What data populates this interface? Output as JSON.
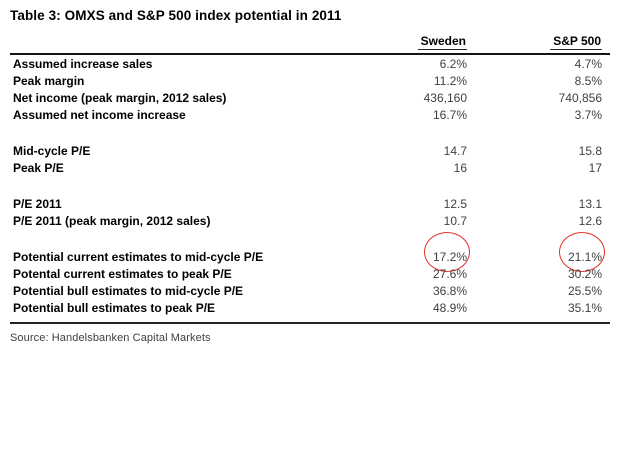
{
  "title": "Table 3: OMXS and S&P 500 index potential in 2011",
  "columns": [
    "Sweden",
    "S&P 500"
  ],
  "groups": [
    {
      "rows": [
        {
          "label": "Assumed increase sales",
          "sweden": "6.2%",
          "sp500": "4.7%"
        },
        {
          "label": "Peak margin",
          "sweden": "11.2%",
          "sp500": "8.5%"
        },
        {
          "label": "Net income (peak margin, 2012 sales)",
          "sweden": "436,160",
          "sp500": "740,856"
        },
        {
          "label": "Assumed net income increase",
          "sweden": "16.7%",
          "sp500": "3.7%"
        }
      ]
    },
    {
      "rows": [
        {
          "label": "Mid-cycle P/E",
          "sweden": "14.7",
          "sp500": "15.8"
        },
        {
          "label": "Peak P/E",
          "sweden": "16",
          "sp500": "17"
        }
      ]
    },
    {
      "rows": [
        {
          "label": "P/E 2011",
          "sweden": "12.5",
          "sp500": "13.1"
        },
        {
          "label": "P/E 2011 (peak margin, 2012 sales)",
          "sweden": "10.7",
          "sp500": "12.6"
        }
      ]
    },
    {
      "rows": [
        {
          "label": "Potential current estimates to mid-cycle P/E",
          "sweden": "17.2%",
          "sp500": "21.1%",
          "circled": true
        },
        {
          "label": "Potental current estimates to peak P/E",
          "sweden": "27.6%",
          "sp500": "30.2%"
        },
        {
          "label": "Potential bull estimates to mid-cycle P/E",
          "sweden": "36.8%",
          "sp500": "25.5%"
        },
        {
          "label": "Potential bull estimates to peak P/E",
          "sweden": "48.9%",
          "sp500": "35.1%"
        }
      ]
    }
  ],
  "annotations": {
    "circle_color": "#e53528",
    "circled_values": [
      "17.2%",
      "21.1%"
    ]
  },
  "source": "Source: Handelsbanken Capital Markets"
}
